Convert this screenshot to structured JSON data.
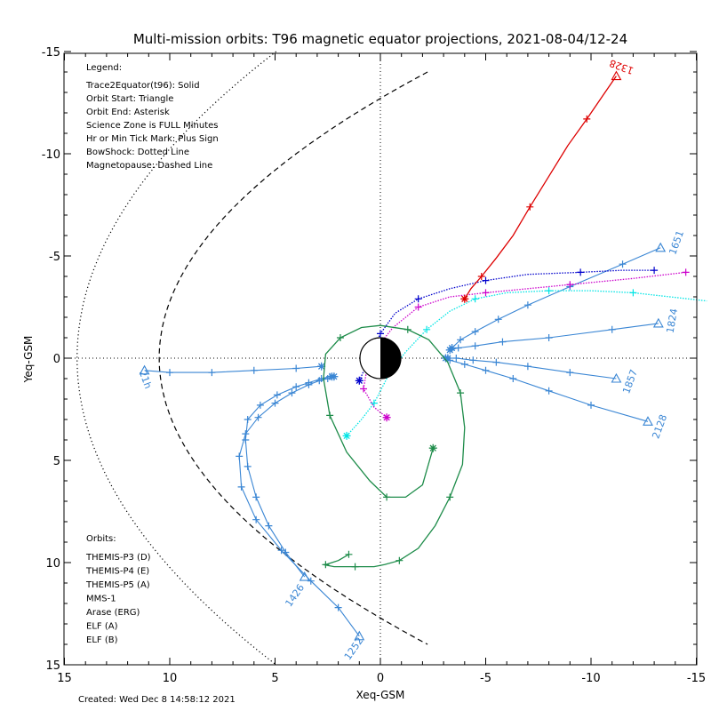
{
  "chart_data": {
    "type": "line",
    "title": "Multi-mission orbits: T96 magnetic equator projections, 2021-08-04/12-24",
    "xlabel": "Xeq-GSM",
    "ylabel": "Yeq-GSM",
    "xlim": [
      15,
      -15
    ],
    "ylim": [
      15,
      -15
    ],
    "x_ticks": [
      "15",
      "10",
      "5",
      "0",
      "-5",
      "-10",
      "-15"
    ],
    "y_ticks": [
      "-15",
      "-10",
      "-5",
      "0",
      "5",
      "10",
      "15"
    ],
    "legend_title": "Legend:",
    "legend_lines": [
      "Trace2Equator(t96): Solid",
      "Orbit Start: Triangle",
      "Orbit End: Asterisk",
      "Science Zone is FULL Minutes",
      "Hr or Min Tick Mark: Plus Sign",
      "BowShock: Dotted Line",
      "Magnetopause: Dashed Line"
    ],
    "orbits_title": "Orbits:",
    "footer": "Created: Wed Dec  8 14:58:12 2021",
    "series": [
      {
        "name": "THEMIS-P3 (D)",
        "color": "#00e5e5",
        "x": [
          1.6,
          0.9,
          0.3,
          -0.1,
          -0.5,
          -1.2,
          -2.2,
          -3.3,
          -4.5,
          -6,
          -8,
          -10,
          -12,
          -15.5
        ],
        "y": [
          3.8,
          3.0,
          2.2,
          1.4,
          0.6,
          -0.3,
          -1.4,
          -2.3,
          -2.9,
          -3.2,
          -3.3,
          -3.3,
          -3.2,
          -2.8
        ]
      },
      {
        "name": "THEMIS-P4 (E)",
        "color": "#0000cc",
        "x": [
          1.0,
          0.6,
          0.0,
          -0.7,
          -1.8,
          -3.3,
          -5,
          -7,
          -9.5,
          -11.5,
          -13.0
        ],
        "y": [
          1.1,
          0.2,
          -1.2,
          -2.2,
          -2.9,
          -3.4,
          -3.8,
          -4.1,
          -4.2,
          -4.3,
          -4.3
        ]
      },
      {
        "name": "THEMIS-P5 (A)",
        "color": "#cc00cc",
        "x": [
          -0.3,
          0.3,
          0.8,
          0.6,
          0.1,
          -0.6,
          -1.8,
          -3.3,
          -5,
          -7,
          -9,
          -12,
          -14.5
        ],
        "y": [
          2.9,
          2.4,
          1.5,
          0.3,
          -0.6,
          -1.5,
          -2.5,
          -3.0,
          -3.2,
          -3.4,
          -3.6,
          -3.9,
          -4.2
        ]
      },
      {
        "name": "MMS-1",
        "color": "#000000",
        "x": [],
        "y": []
      },
      {
        "name": "Arase (ERG)",
        "color": "#1e8c4a",
        "x": [
          1.5,
          2.0,
          2.6,
          2.7,
          2.2,
          1.2,
          0.3,
          -0.2,
          -0.9,
          -1.8,
          -2.6,
          -3.3,
          -3.9,
          -4.0,
          -3.8,
          -3.2,
          -2.3,
          -1.3,
          0.0,
          0.9,
          1.9,
          2.6,
          2.7,
          2.4,
          1.6,
          0.5,
          -0.3,
          -1.2,
          -2.0,
          -2.5
        ],
        "y": [
          9.6,
          9.9,
          10.1,
          10.1,
          10.2,
          10.2,
          10.2,
          10.1,
          9.9,
          9.3,
          8.2,
          6.8,
          5.2,
          3.4,
          1.7,
          0.2,
          -0.9,
          -1.4,
          -1.6,
          -1.5,
          -1.0,
          -0.2,
          1.0,
          2.8,
          4.6,
          6.0,
          6.8,
          6.8,
          6.2,
          4.4
        ]
      },
      {
        "name": "ELF (A)",
        "color": "#3a86d4",
        "x": [],
        "y": []
      },
      {
        "name": "ELF (B)",
        "color": "#dd0000",
        "x": [
          -11.2,
          -10.6,
          -9.8,
          -8.9,
          -8.0,
          -7.1,
          -6.3,
          -5.5,
          -4.8,
          -4.3,
          -4.0
        ],
        "y": [
          -13.8,
          -12.9,
          -11.7,
          -10.4,
          -8.9,
          -7.4,
          -6.0,
          -4.9,
          -4.0,
          -3.4,
          -2.9
        ]
      }
    ],
    "elf_a_passes": [
      {
        "label": "1426",
        "x": [
          3.6,
          4.5,
          5.3,
          5.9,
          6.3,
          6.4,
          6.3,
          5.7,
          4.9,
          4.0,
          3.4,
          2.8,
          2.4,
          2.3
        ],
        "y": [
          10.7,
          9.5,
          8.2,
          6.8,
          5.3,
          4.0,
          3.0,
          2.3,
          1.8,
          1.4,
          1.2,
          1.0,
          0.9,
          0.9
        ]
      },
      {
        "label": "1252",
        "x": [
          1.0,
          2.0,
          3.3,
          4.7,
          5.9,
          6.6,
          6.7,
          6.4,
          5.8,
          5.0,
          4.2,
          3.4,
          2.9,
          2.5,
          2.2
        ],
        "y": [
          13.6,
          12.2,
          10.9,
          9.4,
          7.9,
          6.3,
          4.8,
          3.7,
          2.9,
          2.2,
          1.7,
          1.3,
          1.1,
          1.0,
          0.9
        ]
      },
      {
        "label": "21h",
        "x": [
          11.2,
          10.0,
          8.0,
          6.0,
          4.0,
          2.8
        ],
        "y": [
          0.6,
          0.7,
          0.7,
          0.6,
          0.5,
          0.4
        ]
      },
      {
        "label": "1651",
        "x": [
          -13.3,
          -11.5,
          -9.0,
          -7.0,
          -5.6,
          -4.5,
          -3.8,
          -3.4
        ],
        "y": [
          -5.4,
          -4.6,
          -3.5,
          -2.6,
          -1.9,
          -1.3,
          -0.9,
          -0.5
        ]
      },
      {
        "label": "1824",
        "x": [
          -13.2,
          -11.0,
          -8.0,
          -5.8,
          -4.5,
          -3.7,
          -3.3
        ],
        "y": [
          -1.7,
          -1.4,
          -1.0,
          -0.8,
          -0.6,
          -0.5,
          -0.4
        ]
      },
      {
        "label": "1857",
        "x": [
          -11.2,
          -9.0,
          -7.0,
          -5.5,
          -4.4,
          -3.6,
          -3.2
        ],
        "y": [
          1.0,
          0.7,
          0.4,
          0.2,
          0.1,
          0.0,
          0.0
        ]
      },
      {
        "label": "2128",
        "x": [
          -12.7,
          -10.0,
          -8.0,
          -6.3,
          -5.0,
          -4.0,
          -3.3,
          -3.1
        ],
        "y": [
          3.1,
          2.3,
          1.6,
          1.0,
          0.6,
          0.3,
          0.1,
          0.0
        ]
      }
    ],
    "elf_b_label": "1328",
    "magnetopause_note": "Dashed Line",
    "bowshock_note": "Dotted Line"
  }
}
